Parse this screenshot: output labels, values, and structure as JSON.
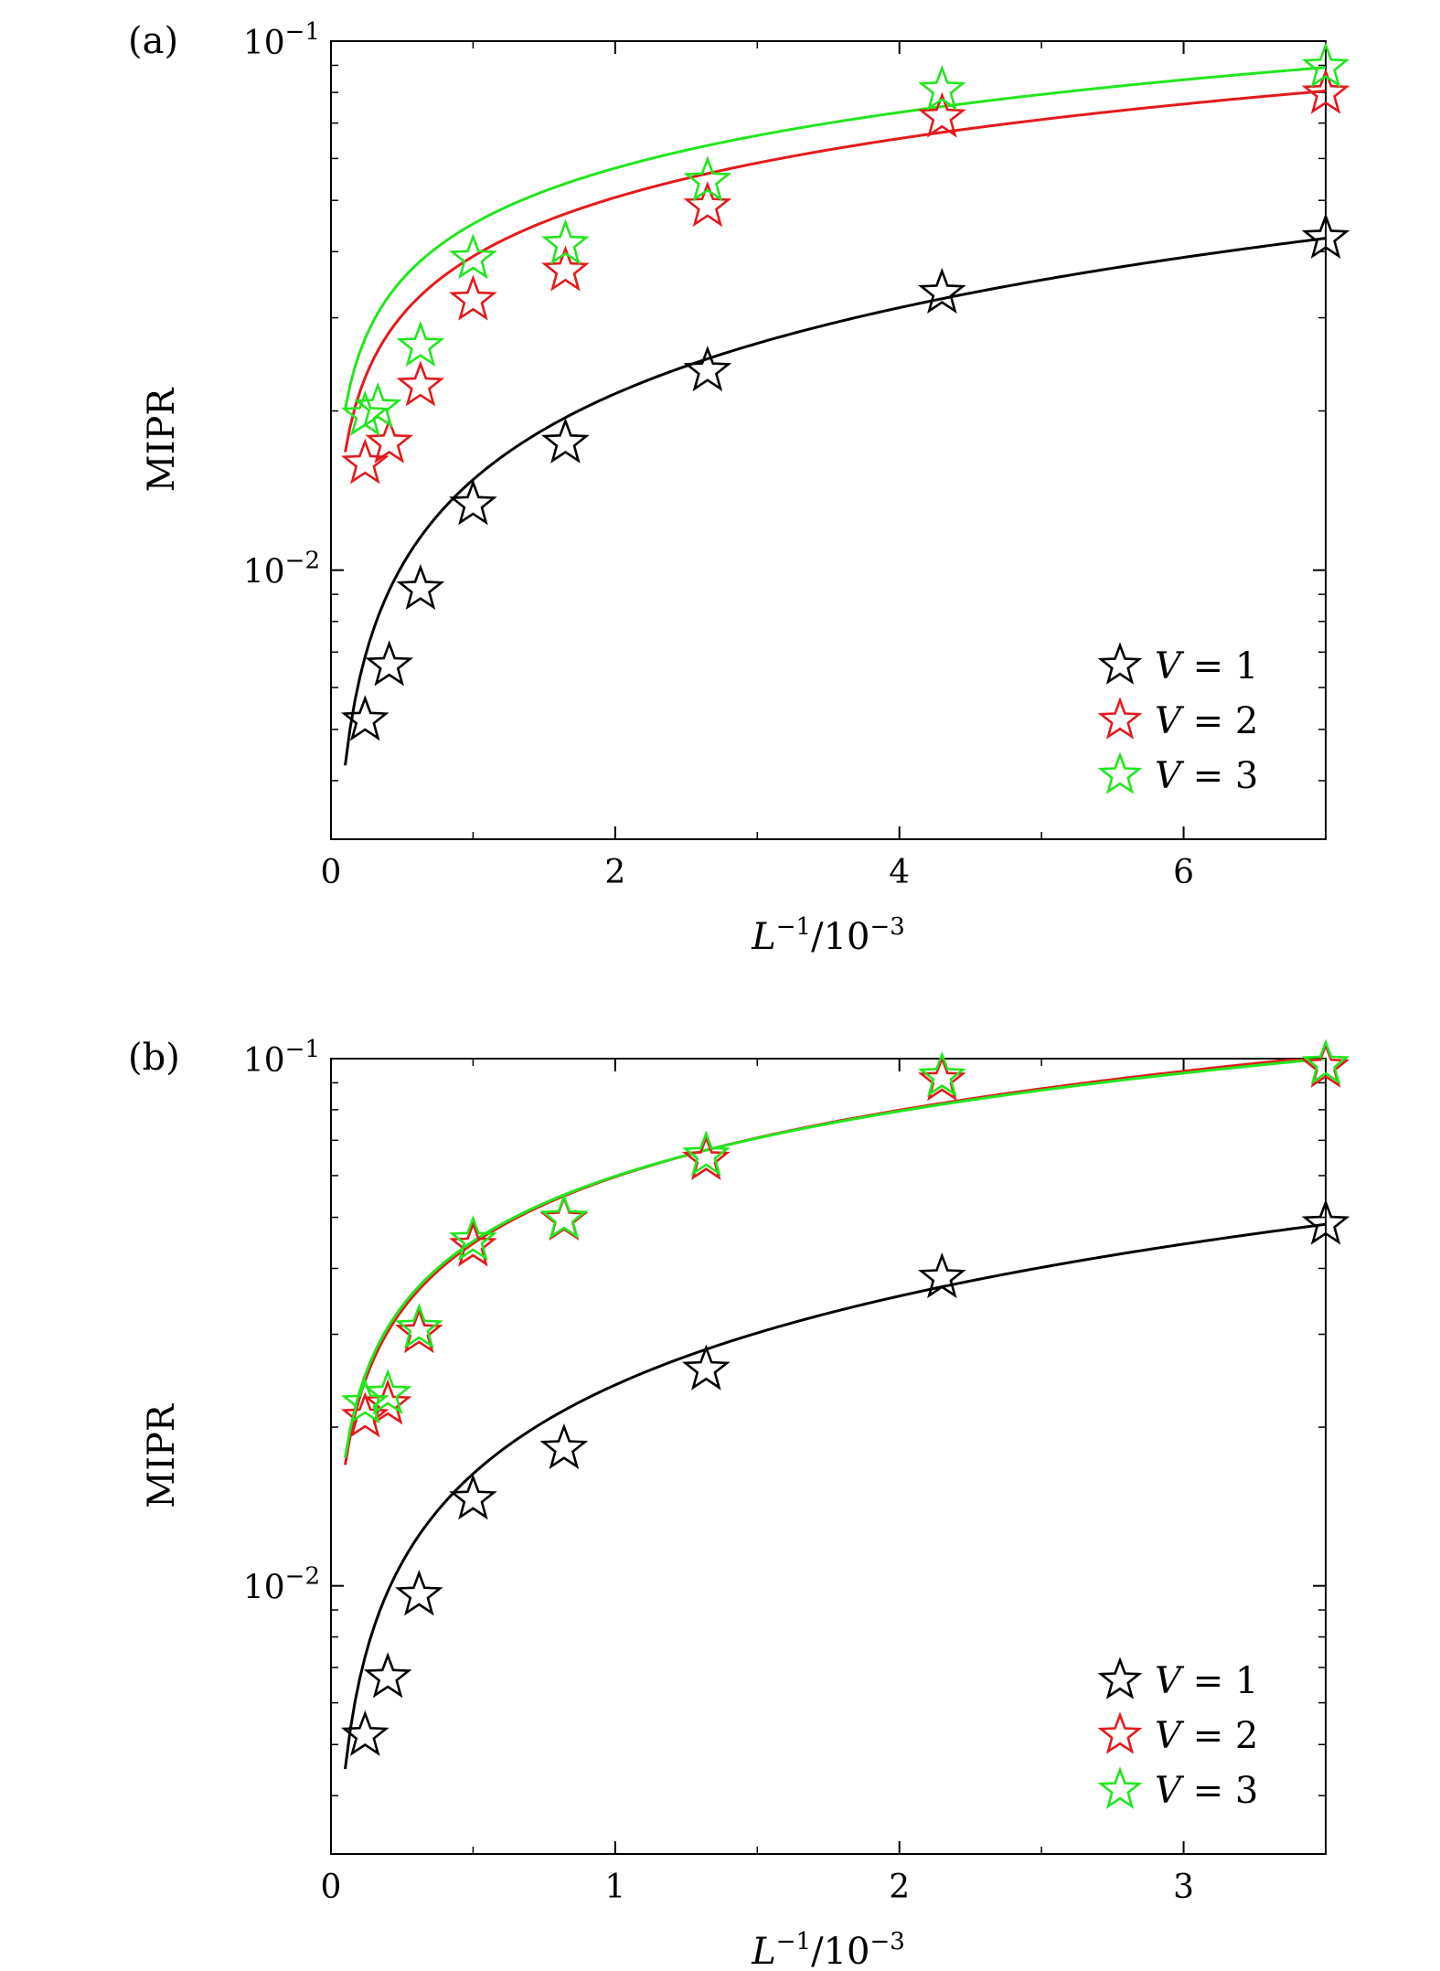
{
  "colors": {
    "V1": "#000000",
    "V2": "#e41a1c",
    "V3": "#22e61e"
  },
  "chart_data": [
    {
      "type": "scatter",
      "panel_label": "(a)",
      "xlabel": "L^-1/10^-3",
      "ylabel": "MIPR",
      "xlim": [
        0,
        7
      ],
      "ylim": [
        0.0031,
        0.1
      ],
      "yscale": "log",
      "xticks": [
        0,
        2,
        4,
        6
      ],
      "yticks": [
        {
          "value": 0.01,
          "label": "10^-2"
        },
        {
          "value": 0.1,
          "label": "10^-1"
        }
      ],
      "grid": false,
      "legend_position": "lower-right",
      "series": [
        {
          "name": "V = 1",
          "color_key": "V1",
          "x": [
            0.24,
            0.41,
            0.63,
            1.0,
            1.65,
            2.65,
            4.3,
            7.0
          ],
          "y": [
            0.0052,
            0.0066,
            0.0092,
            0.0133,
            0.0174,
            0.0238,
            0.0334,
            0.0424
          ],
          "fit": {
            "a": 0.0424,
            "b": 0.54,
            "xmin": 0.1
          }
        },
        {
          "name": "V = 2",
          "color_key": "V2",
          "x": [
            0.24,
            0.41,
            0.63,
            1.0,
            1.65,
            2.65,
            4.3,
            7.0
          ],
          "y": [
            0.0159,
            0.0174,
            0.0223,
            0.0324,
            0.0368,
            0.0487,
            0.0718,
            0.0796
          ],
          "fit": {
            "a": 0.0805,
            "b": 0.37,
            "xmin": 0.1
          }
        },
        {
          "name": "V = 3",
          "color_key": "V3",
          "x": [
            0.24,
            0.33,
            0.63,
            1.0,
            1.65,
            2.65,
            4.3,
            7.0
          ],
          "y": [
            0.0196,
            0.0203,
            0.0265,
            0.0388,
            0.0413,
            0.0544,
            0.0808,
            0.0893
          ],
          "fit": {
            "a": 0.0892,
            "b": 0.35,
            "xmin": 0.1
          }
        }
      ],
      "legend": [
        "V = 1",
        "V = 2",
        "V = 3"
      ]
    },
    {
      "type": "scatter",
      "panel_label": "(b)",
      "xlabel": "L^-1/10^-3",
      "ylabel": "MIPR",
      "xlim": [
        0,
        3.5
      ],
      "ylim": [
        0.0031,
        0.1
      ],
      "yscale": "log",
      "xticks": [
        0,
        1,
        2,
        3
      ],
      "yticks": [
        {
          "value": 0.01,
          "label": "10^-2"
        },
        {
          "value": 0.1,
          "label": "10^-1"
        }
      ],
      "grid": false,
      "legend_position": "lower-right",
      "series": [
        {
          "name": "V = 1",
          "color_key": "V1",
          "x": [
            0.12,
            0.2,
            0.31,
            0.5,
            0.82,
            1.32,
            2.15,
            3.5
          ],
          "y": [
            0.0052,
            0.0067,
            0.0096,
            0.0146,
            0.0182,
            0.0257,
            0.0384,
            0.0485
          ],
          "fit": {
            "a": 0.0485,
            "b": 0.56,
            "xmin": 0.05
          }
        },
        {
          "name": "V = 2",
          "color_key": "V2",
          "x": [
            0.12,
            0.2,
            0.31,
            0.5,
            0.82,
            1.32,
            2.15,
            3.5
          ],
          "y": [
            0.0209,
            0.0221,
            0.0302,
            0.0441,
            0.0494,
            0.0643,
            0.0909,
            0.0963
          ],
          "fit": {
            "a": 0.101,
            "b": 0.42,
            "xmin": 0.05
          }
        },
        {
          "name": "V = 3",
          "color_key": "V3",
          "x": [
            0.12,
            0.2,
            0.31,
            0.5,
            0.82,
            1.32,
            2.15,
            3.5
          ],
          "y": [
            0.0222,
            0.0231,
            0.0308,
            0.0452,
            0.0497,
            0.0655,
            0.0925,
            0.0976
          ],
          "fit": {
            "a": 0.1,
            "b": 0.41,
            "xmin": 0.05
          }
        }
      ],
      "legend": [
        "V = 1",
        "V = 2",
        "V = 3"
      ]
    }
  ]
}
